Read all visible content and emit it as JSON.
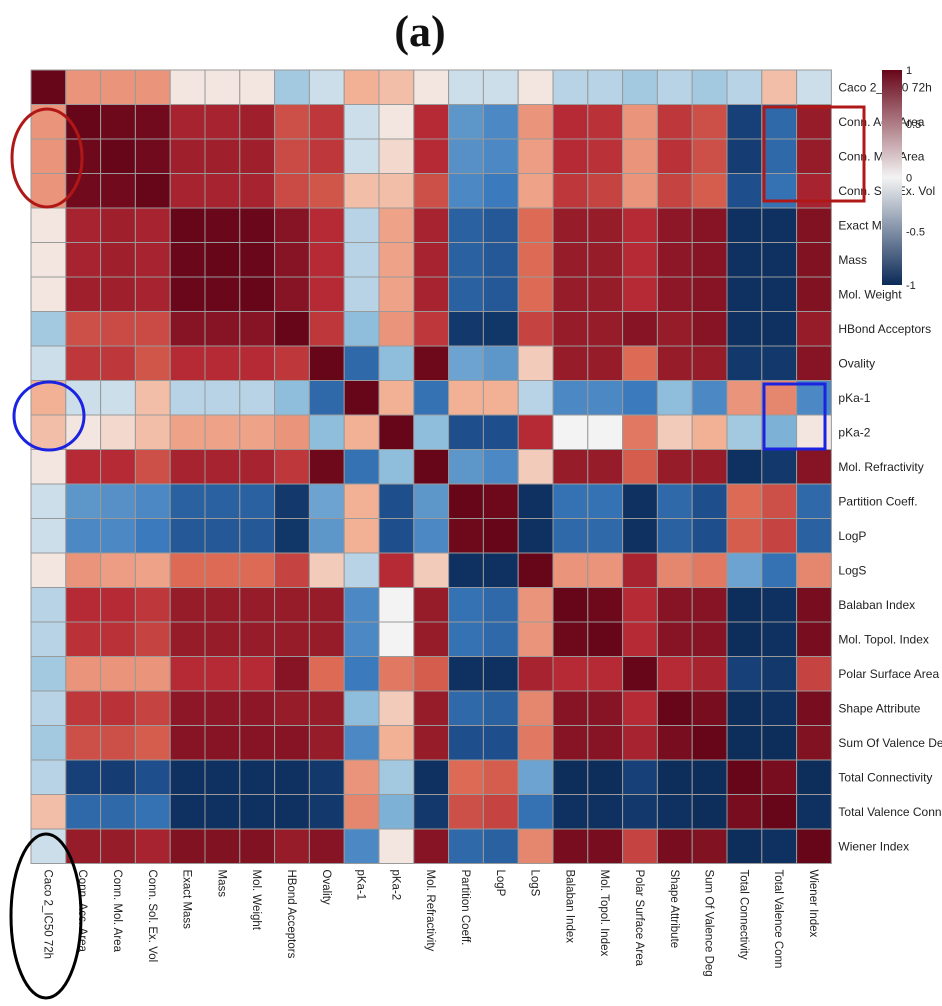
{
  "panel_label": "(a)",
  "colors": {
    "low": "#0b2a57",
    "mid": "#f3f3f3",
    "high": "#680619",
    "red_annotation": "#b01818",
    "blue_annotation": "#1a23e0",
    "black_annotation": "#000000"
  },
  "chart_data": {
    "type": "heatmap",
    "title": "(a)",
    "variables": [
      "Caco 2_IC50 72h",
      "Conn. Acc. Area",
      "Conn. Mol. Area",
      "Conn. Sol. Ex. Vol",
      "Exact Mass",
      "Mass",
      "Mol. Weight",
      "HBond Acceptors",
      "Ovality",
      "pKa-1",
      "pKa-2",
      "Mol. Refractivity",
      "Partition Coeff.",
      "LogP",
      "LogS",
      "Balaban Index",
      "Mol. Topol. Index",
      "Polar Surface Area",
      "Shape Attribute",
      "Sum Of Valence Deg",
      "Total Connectivity",
      "Total Valence Conn",
      "Wiener Index"
    ],
    "colorbar": {
      "ticks": [
        1,
        0.5,
        0,
        -0.5,
        -1
      ],
      "range": [
        -1,
        1
      ]
    },
    "values": [
      [
        1.0,
        0.35,
        0.35,
        0.35,
        0.05,
        0.05,
        0.05,
        -0.2,
        -0.1,
        0.25,
        0.2,
        0.05,
        -0.1,
        -0.1,
        0.05,
        -0.15,
        -0.15,
        -0.2,
        -0.15,
        -0.2,
        -0.15,
        0.2,
        -0.1
      ],
      [
        0.35,
        1.0,
        0.98,
        0.97,
        0.8,
        0.8,
        0.82,
        0.6,
        0.7,
        -0.1,
        0.05,
        0.75,
        -0.4,
        -0.45,
        0.35,
        0.75,
        0.72,
        0.35,
        0.7,
        0.6,
        -0.85,
        -0.6,
        0.85
      ],
      [
        0.35,
        0.98,
        1.0,
        0.97,
        0.82,
        0.82,
        0.82,
        0.62,
        0.7,
        -0.1,
        0.1,
        0.75,
        -0.42,
        -0.45,
        0.32,
        0.75,
        0.72,
        0.35,
        0.72,
        0.6,
        -0.87,
        -0.6,
        0.85
      ],
      [
        0.35,
        0.97,
        0.97,
        1.0,
        0.8,
        0.8,
        0.8,
        0.62,
        0.58,
        0.2,
        0.2,
        0.6,
        -0.45,
        -0.5,
        0.3,
        0.7,
        0.65,
        0.35,
        0.65,
        0.55,
        -0.75,
        -0.55,
        0.8
      ],
      [
        0.05,
        0.8,
        0.82,
        0.8,
        1.0,
        0.99,
        0.99,
        0.9,
        0.75,
        -0.15,
        0.3,
        0.8,
        -0.65,
        -0.7,
        0.5,
        0.85,
        0.85,
        0.75,
        0.88,
        0.9,
        -0.95,
        -0.95,
        0.92
      ],
      [
        0.05,
        0.8,
        0.82,
        0.8,
        0.99,
        1.0,
        0.99,
        0.9,
        0.75,
        -0.15,
        0.3,
        0.8,
        -0.65,
        -0.7,
        0.5,
        0.85,
        0.85,
        0.75,
        0.88,
        0.9,
        -0.95,
        -0.95,
        0.92
      ],
      [
        0.05,
        0.82,
        0.82,
        0.8,
        0.99,
        0.99,
        1.0,
        0.9,
        0.75,
        -0.15,
        0.3,
        0.8,
        -0.65,
        -0.7,
        0.5,
        0.85,
        0.85,
        0.75,
        0.88,
        0.9,
        -0.95,
        -0.95,
        0.92
      ],
      [
        -0.2,
        0.6,
        0.62,
        0.62,
        0.9,
        0.9,
        0.9,
        1.0,
        0.7,
        -0.25,
        0.35,
        0.7,
        -0.9,
        -0.92,
        0.65,
        0.85,
        0.85,
        0.9,
        0.85,
        0.9,
        -0.95,
        -0.95,
        0.85
      ],
      [
        -0.1,
        0.7,
        0.7,
        0.58,
        0.75,
        0.75,
        0.75,
        0.7,
        1.0,
        -0.6,
        -0.25,
        0.98,
        -0.35,
        -0.4,
        0.15,
        0.85,
        0.85,
        0.5,
        0.85,
        0.85,
        -0.9,
        -0.9,
        0.9
      ],
      [
        0.25,
        -0.1,
        -0.1,
        0.2,
        -0.15,
        -0.15,
        -0.15,
        -0.25,
        -0.6,
        1.0,
        0.25,
        -0.55,
        0.25,
        0.25,
        -0.15,
        -0.45,
        -0.45,
        -0.5,
        -0.25,
        -0.45,
        0.35,
        0.4,
        -0.45
      ],
      [
        0.2,
        0.05,
        0.1,
        0.2,
        0.3,
        0.3,
        0.3,
        0.35,
        -0.25,
        0.25,
        1.0,
        -0.25,
        -0.75,
        -0.75,
        0.75,
        0.0,
        0.0,
        0.45,
        0.15,
        0.25,
        -0.2,
        -0.3,
        0.05
      ],
      [
        0.05,
        0.75,
        0.75,
        0.6,
        0.8,
        0.8,
        0.8,
        0.7,
        0.98,
        -0.55,
        -0.25,
        1.0,
        -0.4,
        -0.45,
        0.15,
        0.85,
        0.85,
        0.55,
        0.85,
        0.85,
        -0.95,
        -0.9,
        0.9
      ],
      [
        -0.1,
        -0.4,
        -0.42,
        -0.45,
        -0.65,
        -0.65,
        -0.65,
        -0.9,
        -0.35,
        0.25,
        -0.75,
        -0.4,
        1.0,
        0.98,
        -0.95,
        -0.55,
        -0.55,
        -0.95,
        -0.6,
        -0.75,
        0.5,
        0.6,
        -0.6
      ],
      [
        -0.1,
        -0.45,
        -0.45,
        -0.5,
        -0.7,
        -0.7,
        -0.7,
        -0.92,
        -0.4,
        0.25,
        -0.75,
        -0.45,
        0.98,
        1.0,
        -0.95,
        -0.6,
        -0.6,
        -0.95,
        -0.65,
        -0.75,
        0.55,
        0.65,
        -0.65
      ],
      [
        0.05,
        0.35,
        0.32,
        0.3,
        0.5,
        0.5,
        0.5,
        0.65,
        0.15,
        -0.15,
        0.75,
        0.15,
        -0.95,
        -0.95,
        1.0,
        0.35,
        0.35,
        0.8,
        0.4,
        0.45,
        -0.35,
        -0.55,
        0.4
      ],
      [
        -0.15,
        0.75,
        0.75,
        0.7,
        0.85,
        0.85,
        0.85,
        0.85,
        0.85,
        -0.45,
        0.0,
        0.85,
        -0.55,
        -0.6,
        0.35,
        1.0,
        0.98,
        0.75,
        0.9,
        0.9,
        -0.98,
        -0.95,
        0.95
      ],
      [
        -0.15,
        0.72,
        0.72,
        0.65,
        0.85,
        0.85,
        0.85,
        0.85,
        0.85,
        -0.45,
        0.0,
        0.85,
        -0.55,
        -0.6,
        0.35,
        0.98,
        1.0,
        0.75,
        0.9,
        0.9,
        -0.98,
        -0.95,
        0.95
      ],
      [
        -0.2,
        0.35,
        0.35,
        0.35,
        0.75,
        0.75,
        0.75,
        0.9,
        0.5,
        -0.5,
        0.45,
        0.55,
        -0.95,
        -0.95,
        0.8,
        0.75,
        0.75,
        1.0,
        0.75,
        0.8,
        -0.85,
        -0.9,
        0.65
      ],
      [
        -0.15,
        0.7,
        0.72,
        0.65,
        0.88,
        0.88,
        0.88,
        0.85,
        0.85,
        -0.25,
        0.15,
        0.85,
        -0.6,
        -0.65,
        0.4,
        0.9,
        0.9,
        0.75,
        1.0,
        0.95,
        -0.98,
        -0.95,
        0.95
      ],
      [
        -0.2,
        0.6,
        0.6,
        0.55,
        0.9,
        0.9,
        0.9,
        0.9,
        0.85,
        -0.45,
        0.25,
        0.85,
        -0.75,
        -0.75,
        0.45,
        0.9,
        0.9,
        0.8,
        0.95,
        1.0,
        -0.98,
        -0.98,
        0.92
      ],
      [
        -0.15,
        -0.85,
        -0.87,
        -0.75,
        -0.95,
        -0.95,
        -0.95,
        -0.95,
        -0.9,
        0.35,
        -0.2,
        -0.95,
        0.5,
        0.55,
        -0.35,
        -0.98,
        -0.98,
        -0.85,
        -0.98,
        -0.98,
        1.0,
        0.95,
        -0.98
      ],
      [
        0.2,
        -0.6,
        -0.6,
        -0.55,
        -0.95,
        -0.95,
        -0.95,
        -0.95,
        -0.9,
        0.4,
        -0.3,
        -0.9,
        0.6,
        0.65,
        -0.55,
        -0.95,
        -0.95,
        -0.9,
        -0.95,
        -0.98,
        0.95,
        1.0,
        -0.95
      ],
      [
        -0.1,
        0.85,
        0.85,
        0.8,
        0.92,
        0.92,
        0.92,
        0.85,
        0.9,
        -0.45,
        0.05,
        0.9,
        -0.6,
        -0.65,
        0.4,
        0.95,
        0.95,
        0.65,
        0.95,
        0.92,
        -0.98,
        -0.95,
        1.0
      ]
    ]
  }
}
